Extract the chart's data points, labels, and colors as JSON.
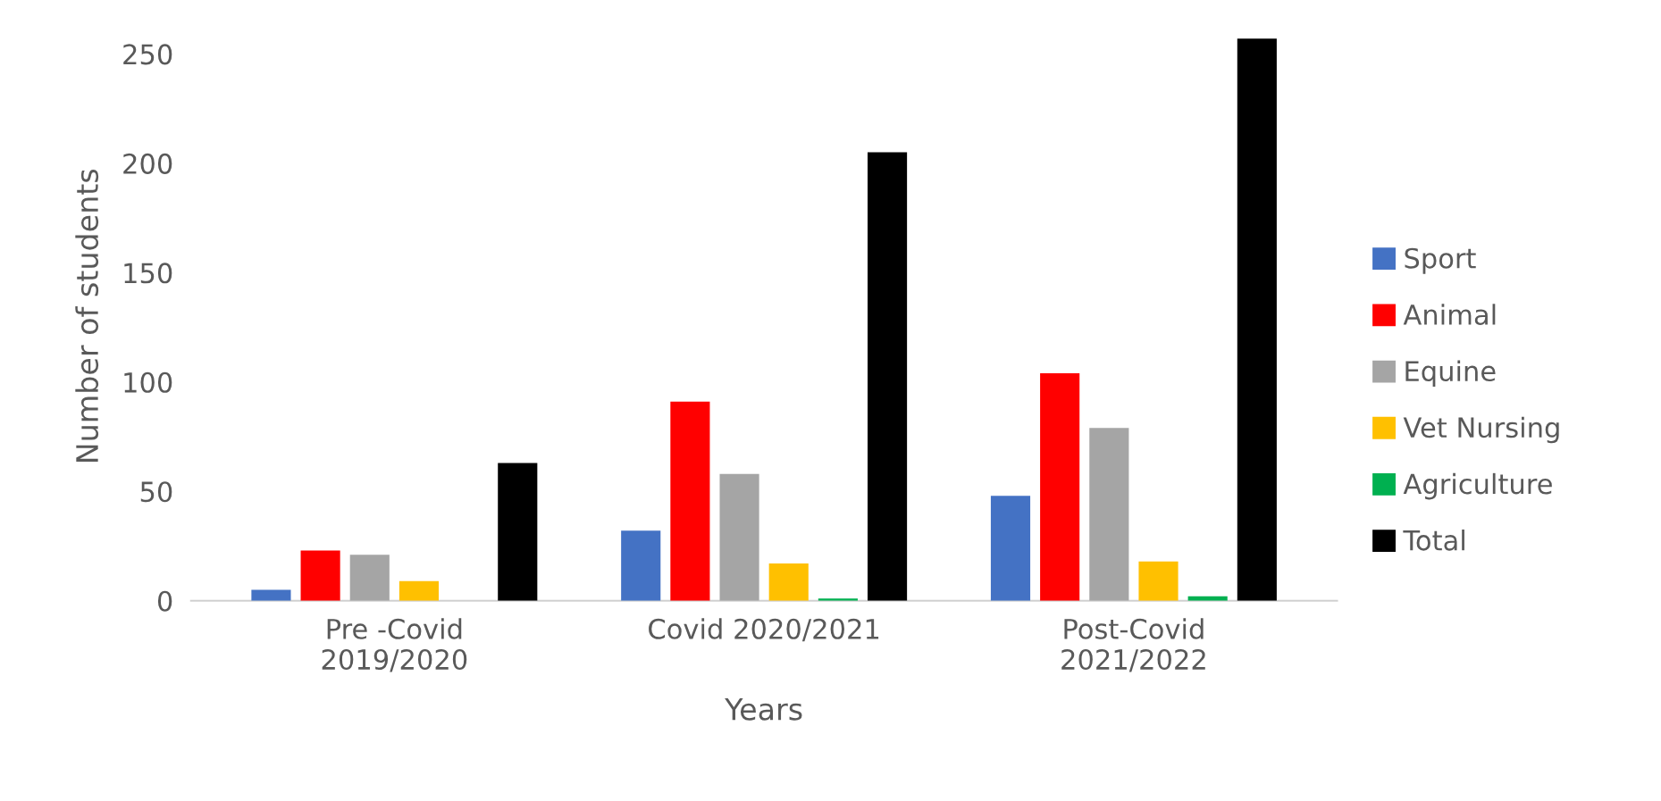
{
  "chart_data": {
    "type": "bar",
    "xlabel": "Years",
    "ylabel": "Number of students",
    "categories": [
      "Pre -Covid\n2019/2020",
      "Covid 2020/2021",
      "Post-Covid\n2021/2022"
    ],
    "series": [
      {
        "name": "Sport",
        "color": "#4472c4",
        "values": [
          5,
          32,
          48
        ]
      },
      {
        "name": "Animal",
        "color": "#ff0000",
        "values": [
          23,
          91,
          104
        ]
      },
      {
        "name": "Equine",
        "color": "#a5a5a5",
        "values": [
          21,
          58,
          79
        ]
      },
      {
        "name": "Vet Nursing",
        "color": "#ffc000",
        "values": [
          9,
          17,
          18
        ]
      },
      {
        "name": "Agriculture",
        "color": "#00b050",
        "values": [
          0,
          1,
          2
        ]
      },
      {
        "name": "Total",
        "color": "#000000",
        "values": [
          63,
          205,
          257
        ]
      }
    ],
    "ylim": [
      0,
      260
    ],
    "yticks": [
      0,
      50,
      100,
      150,
      200,
      250
    ],
    "grid": false,
    "legend": "right"
  }
}
